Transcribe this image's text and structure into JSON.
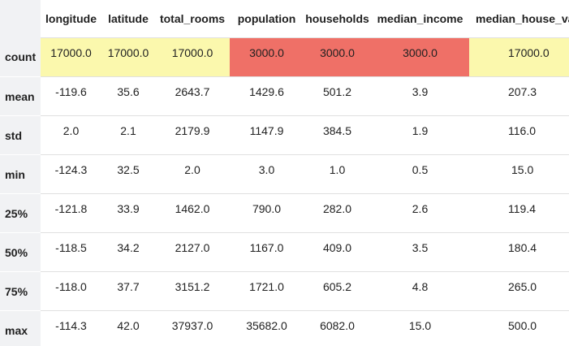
{
  "table": {
    "columns": [
      "longitude",
      "latitude",
      "total_rooms",
      "population",
      "households",
      "median_income",
      "median_house_value"
    ],
    "rows": [
      {
        "label": "count",
        "values": [
          "17000.0",
          "17000.0",
          "17000.0",
          "3000.0",
          "3000.0",
          "3000.0",
          "17000.0"
        ]
      },
      {
        "label": "mean",
        "values": [
          "-119.6",
          "35.6",
          "2643.7",
          "1429.6",
          "501.2",
          "3.9",
          "207.3"
        ]
      },
      {
        "label": "std",
        "values": [
          "2.0",
          "2.1",
          "2179.9",
          "1147.9",
          "384.5",
          "1.9",
          "116.0"
        ]
      },
      {
        "label": "min",
        "values": [
          "-124.3",
          "32.5",
          "2.0",
          "3.0",
          "1.0",
          "0.5",
          "15.0"
        ]
      },
      {
        "label": "25%",
        "values": [
          "-121.8",
          "33.9",
          "1462.0",
          "790.0",
          "282.0",
          "2.6",
          "119.4"
        ]
      },
      {
        "label": "50%",
        "values": [
          "-118.5",
          "34.2",
          "2127.0",
          "1167.0",
          "409.0",
          "3.5",
          "180.4"
        ]
      },
      {
        "label": "75%",
        "values": [
          "-118.0",
          "37.7",
          "3151.2",
          "1721.0",
          "605.2",
          "4.8",
          "265.0"
        ]
      },
      {
        "label": "max",
        "values": [
          "-114.3",
          "42.0",
          "37937.0",
          "35682.0",
          "6082.0",
          "15.0",
          "500.0"
        ]
      }
    ]
  },
  "highlight_colors": {
    "yellow": "#fbf8ad",
    "red": "#ef7067"
  }
}
